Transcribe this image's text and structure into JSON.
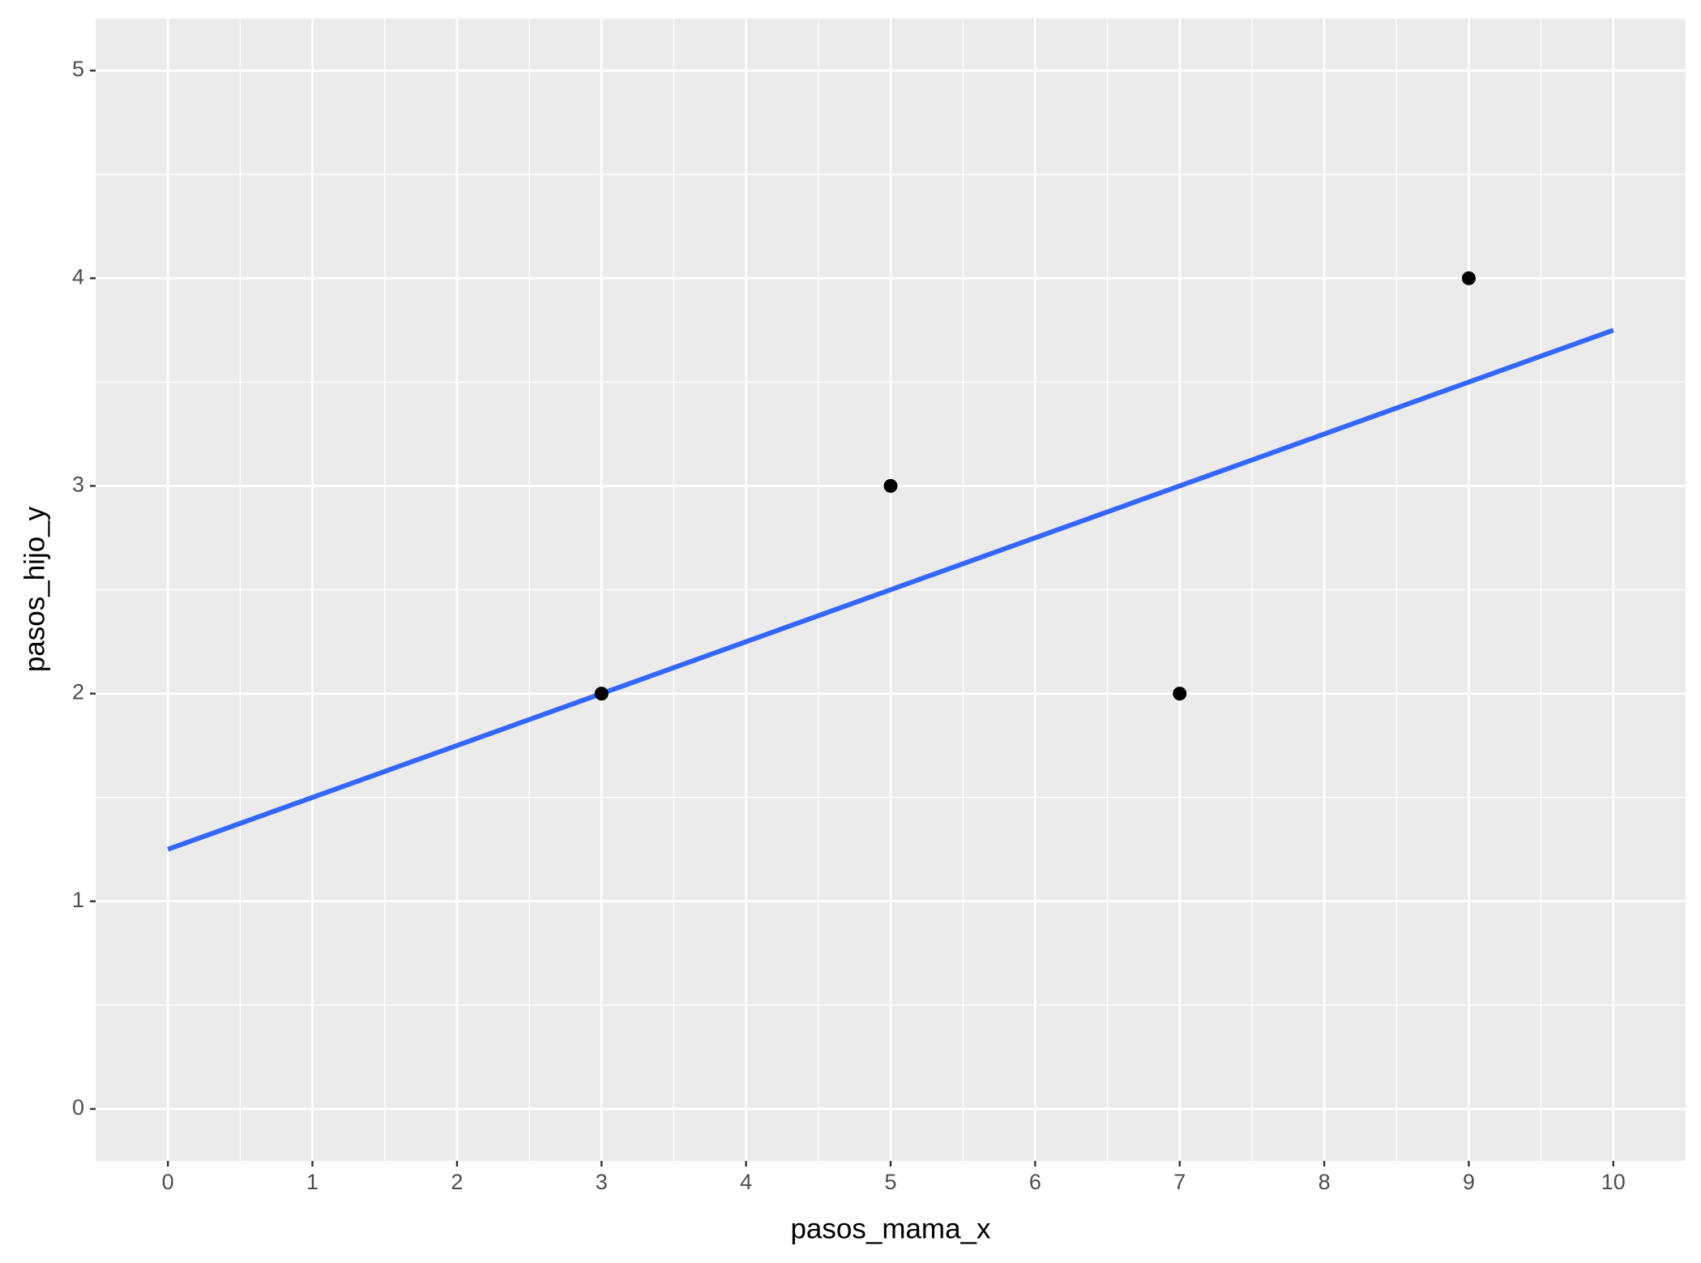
{
  "chart_data": {
    "type": "scatter",
    "x_label": "pasos_mama_x",
    "y_label": "pasos_hijo_y",
    "x": [
      3,
      5,
      7,
      9
    ],
    "series": [
      {
        "color": "#000000",
        "values": [
          2,
          3,
          2,
          4
        ]
      }
    ],
    "fit_line": {
      "color": "#3366FF",
      "x": [
        0,
        10
      ],
      "values": [
        1.25,
        3.75
      ]
    },
    "xlim": [
      -0.5,
      10.5
    ],
    "ylim": [
      -0.25,
      5.25
    ],
    "xticks": [
      0,
      1,
      2,
      3,
      4,
      5,
      6,
      7,
      8,
      9,
      10
    ],
    "yticks": [
      0,
      1,
      2,
      3,
      4,
      5
    ],
    "grid": true
  }
}
